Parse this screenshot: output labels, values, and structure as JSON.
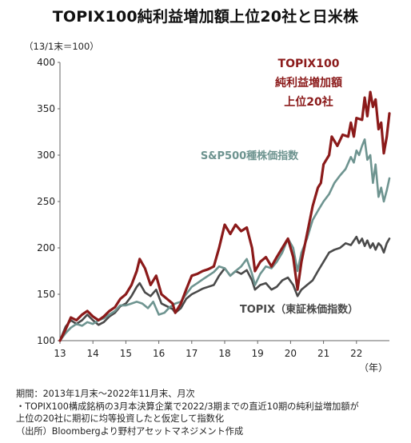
{
  "title": "TOPIX100純利益増加額上位20社と日米株",
  "unit_note": "（13/1末＝100）",
  "notes": {
    "line1": "期間：2013年1月末～2022年11月末、月次",
    "line2": "・TOPIX100構成銘柄の3月本決算企業で2022/3期までの直近10期の純利益増加額が",
    "line3": "上位の20社に期初に均等投資したと仮定して指数化",
    "line4": "（出所）Bloombergより野村アセットマネジメント作成"
  },
  "chart_data": {
    "type": "line",
    "xlabel": "（年）",
    "ylabel": "",
    "xlim": [
      2013.0,
      2023.0
    ],
    "ylim": [
      100,
      400
    ],
    "y_ticks": [
      100,
      150,
      200,
      250,
      300,
      350,
      400
    ],
    "x_ticks": [
      {
        "value": 2013,
        "label": "13"
      },
      {
        "value": 2014,
        "label": "14"
      },
      {
        "value": 2015,
        "label": "15"
      },
      {
        "value": 2016,
        "label": "16"
      },
      {
        "value": 2017,
        "label": "17"
      },
      {
        "value": 2018,
        "label": "18"
      },
      {
        "value": 2019,
        "label": "19"
      },
      {
        "value": 2020,
        "label": "20"
      },
      {
        "value": 2021,
        "label": "21"
      },
      {
        "value": 2022,
        "label": "22"
      }
    ],
    "grid": false,
    "series": [
      {
        "name_lines": [
          "TOPIX100",
          "純利益増加額",
          "上位20社"
        ],
        "color": "#8b1a1a",
        "points": [
          [
            2013.0,
            100
          ],
          [
            2013.17,
            112
          ],
          [
            2013.33,
            125
          ],
          [
            2013.5,
            122
          ],
          [
            2013.67,
            128
          ],
          [
            2013.83,
            132
          ],
          [
            2014.0,
            126
          ],
          [
            2014.17,
            122
          ],
          [
            2014.33,
            126
          ],
          [
            2014.5,
            132
          ],
          [
            2014.67,
            136
          ],
          [
            2014.83,
            145
          ],
          [
            2015.0,
            150
          ],
          [
            2015.17,
            160
          ],
          [
            2015.33,
            175
          ],
          [
            2015.42,
            188
          ],
          [
            2015.58,
            178
          ],
          [
            2015.75,
            160
          ],
          [
            2015.92,
            170
          ],
          [
            2016.08,
            150
          ],
          [
            2016.25,
            145
          ],
          [
            2016.42,
            140
          ],
          [
            2016.5,
            130
          ],
          [
            2016.67,
            140
          ],
          [
            2016.83,
            155
          ],
          [
            2017.0,
            170
          ],
          [
            2017.17,
            172
          ],
          [
            2017.33,
            175
          ],
          [
            2017.5,
            177
          ],
          [
            2017.67,
            180
          ],
          [
            2017.83,
            200
          ],
          [
            2018.0,
            225
          ],
          [
            2018.17,
            215
          ],
          [
            2018.33,
            225
          ],
          [
            2018.5,
            218
          ],
          [
            2018.67,
            222
          ],
          [
            2018.83,
            200
          ],
          [
            2018.92,
            175
          ],
          [
            2019.08,
            185
          ],
          [
            2019.25,
            190
          ],
          [
            2019.42,
            180
          ],
          [
            2019.58,
            190
          ],
          [
            2019.75,
            200
          ],
          [
            2019.92,
            210
          ],
          [
            2020.08,
            190
          ],
          [
            2020.21,
            155
          ],
          [
            2020.33,
            185
          ],
          [
            2020.5,
            215
          ],
          [
            2020.67,
            245
          ],
          [
            2020.83,
            265
          ],
          [
            2020.92,
            270
          ],
          [
            2021.0,
            290
          ],
          [
            2021.17,
            300
          ],
          [
            2021.25,
            320
          ],
          [
            2021.42,
            310
          ],
          [
            2021.58,
            322
          ],
          [
            2021.75,
            320
          ],
          [
            2021.83,
            335
          ],
          [
            2021.92,
            320
          ],
          [
            2022.0,
            340
          ],
          [
            2022.17,
            338
          ],
          [
            2022.25,
            362
          ],
          [
            2022.33,
            342
          ],
          [
            2022.42,
            368
          ],
          [
            2022.5,
            352
          ],
          [
            2022.58,
            360
          ],
          [
            2022.67,
            328
          ],
          [
            2022.75,
            335
          ],
          [
            2022.83,
            302
          ],
          [
            2022.92,
            320
          ],
          [
            2023.0,
            345
          ]
        ]
      },
      {
        "name_lines": [
          "S&P500種株価指数"
        ],
        "color": "#6e9490",
        "points": [
          [
            2013.0,
            100
          ],
          [
            2013.17,
            108
          ],
          [
            2013.33,
            114
          ],
          [
            2013.5,
            118
          ],
          [
            2013.67,
            116
          ],
          [
            2013.83,
            120
          ],
          [
            2014.0,
            118
          ],
          [
            2014.17,
            122
          ],
          [
            2014.33,
            124
          ],
          [
            2014.5,
            128
          ],
          [
            2014.67,
            132
          ],
          [
            2014.83,
            138
          ],
          [
            2015.0,
            138
          ],
          [
            2015.17,
            140
          ],
          [
            2015.33,
            142
          ],
          [
            2015.5,
            140
          ],
          [
            2015.67,
            135
          ],
          [
            2015.83,
            142
          ],
          [
            2016.0,
            128
          ],
          [
            2016.17,
            130
          ],
          [
            2016.33,
            136
          ],
          [
            2016.5,
            140
          ],
          [
            2016.67,
            142
          ],
          [
            2016.83,
            150
          ],
          [
            2017.0,
            158
          ],
          [
            2017.17,
            162
          ],
          [
            2017.33,
            166
          ],
          [
            2017.5,
            170
          ],
          [
            2017.67,
            174
          ],
          [
            2017.83,
            180
          ],
          [
            2018.0,
            178
          ],
          [
            2018.17,
            170
          ],
          [
            2018.33,
            175
          ],
          [
            2018.5,
            180
          ],
          [
            2018.67,
            188
          ],
          [
            2018.83,
            172
          ],
          [
            2018.92,
            160
          ],
          [
            2019.08,
            172
          ],
          [
            2019.25,
            180
          ],
          [
            2019.42,
            178
          ],
          [
            2019.58,
            185
          ],
          [
            2019.75,
            195
          ],
          [
            2019.92,
            210
          ],
          [
            2020.08,
            200
          ],
          [
            2020.21,
            175
          ],
          [
            2020.33,
            195
          ],
          [
            2020.5,
            210
          ],
          [
            2020.67,
            230
          ],
          [
            2020.83,
            240
          ],
          [
            2021.0,
            250
          ],
          [
            2021.17,
            258
          ],
          [
            2021.33,
            270
          ],
          [
            2021.5,
            278
          ],
          [
            2021.67,
            285
          ],
          [
            2021.83,
            298
          ],
          [
            2021.92,
            292
          ],
          [
            2022.0,
            305
          ],
          [
            2022.08,
            300
          ],
          [
            2022.17,
            310
          ],
          [
            2022.25,
            317
          ],
          [
            2022.33,
            295
          ],
          [
            2022.42,
            300
          ],
          [
            2022.5,
            270
          ],
          [
            2022.58,
            290
          ],
          [
            2022.67,
            255
          ],
          [
            2022.75,
            265
          ],
          [
            2022.83,
            250
          ],
          [
            2022.92,
            262
          ],
          [
            2023.0,
            275
          ]
        ]
      },
      {
        "name_lines": [
          "TOPIX（東証株価指数）"
        ],
        "color": "#4a4a4a",
        "points": [
          [
            2013.0,
            100
          ],
          [
            2013.17,
            115
          ],
          [
            2013.33,
            122
          ],
          [
            2013.5,
            118
          ],
          [
            2013.67,
            122
          ],
          [
            2013.83,
            128
          ],
          [
            2014.0,
            122
          ],
          [
            2014.17,
            117
          ],
          [
            2014.33,
            120
          ],
          [
            2014.5,
            126
          ],
          [
            2014.67,
            130
          ],
          [
            2014.83,
            137
          ],
          [
            2015.0,
            140
          ],
          [
            2015.17,
            148
          ],
          [
            2015.33,
            158
          ],
          [
            2015.42,
            162
          ],
          [
            2015.58,
            152
          ],
          [
            2015.75,
            148
          ],
          [
            2015.92,
            155
          ],
          [
            2016.08,
            140
          ],
          [
            2016.25,
            137
          ],
          [
            2016.42,
            134
          ],
          [
            2016.5,
            130
          ],
          [
            2016.67,
            135
          ],
          [
            2016.83,
            145
          ],
          [
            2017.0,
            150
          ],
          [
            2017.17,
            153
          ],
          [
            2017.33,
            156
          ],
          [
            2017.5,
            158
          ],
          [
            2017.67,
            160
          ],
          [
            2017.83,
            170
          ],
          [
            2018.0,
            178
          ],
          [
            2018.17,
            170
          ],
          [
            2018.33,
            175
          ],
          [
            2018.5,
            172
          ],
          [
            2018.67,
            176
          ],
          [
            2018.83,
            165
          ],
          [
            2018.92,
            155
          ],
          [
            2019.08,
            160
          ],
          [
            2019.25,
            162
          ],
          [
            2019.42,
            155
          ],
          [
            2019.58,
            158
          ],
          [
            2019.75,
            165
          ],
          [
            2019.92,
            168
          ],
          [
            2020.08,
            160
          ],
          [
            2020.21,
            148
          ],
          [
            2020.33,
            155
          ],
          [
            2020.5,
            160
          ],
          [
            2020.67,
            165
          ],
          [
            2020.83,
            175
          ],
          [
            2021.0,
            185
          ],
          [
            2021.17,
            195
          ],
          [
            2021.33,
            198
          ],
          [
            2021.5,
            200
          ],
          [
            2021.67,
            205
          ],
          [
            2021.83,
            203
          ],
          [
            2022.0,
            212
          ],
          [
            2022.08,
            205
          ],
          [
            2022.17,
            210
          ],
          [
            2022.25,
            202
          ],
          [
            2022.33,
            208
          ],
          [
            2022.42,
            200
          ],
          [
            2022.5,
            205
          ],
          [
            2022.58,
            198
          ],
          [
            2022.67,
            205
          ],
          [
            2022.75,
            202
          ],
          [
            2022.83,
            195
          ],
          [
            2022.92,
            205
          ],
          [
            2023.0,
            210
          ]
        ]
      }
    ]
  }
}
